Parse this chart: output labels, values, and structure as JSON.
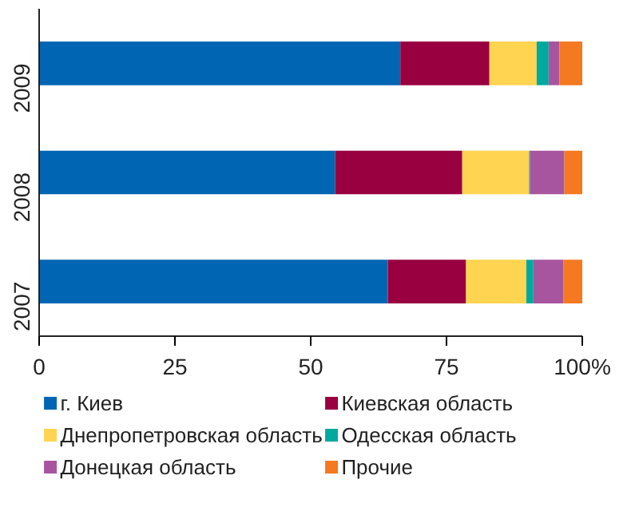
{
  "chart_data": {
    "type": "bar",
    "orientation": "horizontal",
    "stacked": true,
    "categories": [
      "2009",
      "2008",
      "2007"
    ],
    "series": [
      {
        "name": "г. Киев",
        "color": "#0066b3",
        "values": [
          66.5,
          54.5,
          64.2
        ]
      },
      {
        "name": "Киевская область",
        "color": "#990040",
        "values": [
          16.4,
          23.4,
          14.4
        ]
      },
      {
        "name": "Днепропетровская область",
        "color": "#ffd450",
        "values": [
          8.7,
          12.3,
          11.1
        ]
      },
      {
        "name": "Одесская область",
        "color": "#00a99d",
        "values": [
          2.2,
          0.2,
          1.3
        ]
      },
      {
        "name": "Донецкая область",
        "color": "#a855a0",
        "values": [
          2.0,
          6.3,
          5.5
        ]
      },
      {
        "name": "Прочие",
        "color": "#f47920",
        "values": [
          4.2,
          3.3,
          3.5
        ]
      }
    ],
    "xlim": [
      0,
      100
    ],
    "xticks": [
      0,
      25,
      50,
      75,
      {
        "value": 100,
        "label": "100%"
      }
    ],
    "grid": false,
    "legend": "bottom"
  }
}
